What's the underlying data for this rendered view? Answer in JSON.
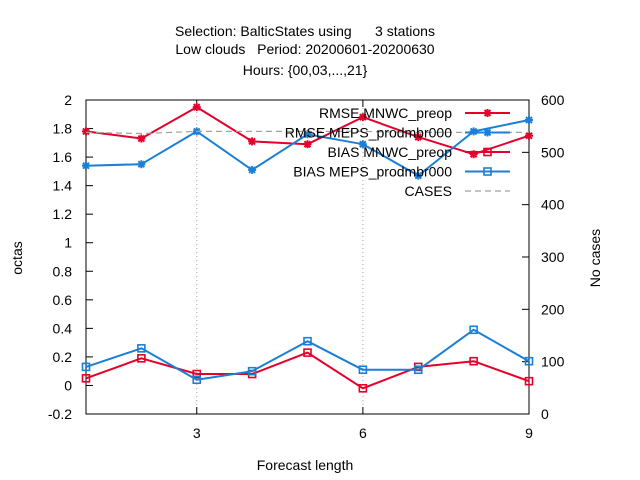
{
  "chart_data": {
    "type": "line",
    "title_lines": [
      "Selection: BalticStates using      3 stations",
      "Low clouds   Period: 20200601-20200630",
      "Hours: {00,03,...,21}"
    ],
    "xlabel": "Forecast length",
    "ylabel": "octas",
    "y2label": "No cases",
    "xlim": [
      1,
      9
    ],
    "ylim": [
      -0.2,
      2
    ],
    "y2lim": [
      0,
      600
    ],
    "x_ticks": [
      3,
      6,
      9
    ],
    "y_ticks": [
      -0.2,
      0,
      0.2,
      0.4,
      0.6,
      0.8,
      1,
      1.2,
      1.4,
      1.6,
      1.8,
      2
    ],
    "y2_ticks": [
      0,
      100,
      200,
      300,
      400,
      500,
      600
    ],
    "legend_position": "top-right",
    "x": [
      1,
      2,
      3,
      4,
      5,
      6,
      7,
      8,
      9
    ],
    "series": [
      {
        "name": "RMSE MNWC_preop",
        "axis": "y",
        "color": "#e4002b",
        "marker": "star",
        "dash": "",
        "values": [
          1.78,
          1.73,
          1.95,
          1.71,
          1.69,
          1.88,
          1.74,
          1.62,
          1.75
        ]
      },
      {
        "name": "RMSE MEPS_prodmbr000",
        "axis": "y",
        "color": "#1c7fd6",
        "marker": "star",
        "dash": "",
        "values": [
          1.54,
          1.55,
          1.78,
          1.51,
          1.76,
          1.69,
          1.47,
          1.78,
          1.86
        ]
      },
      {
        "name": "BIAS MNWC_preop",
        "axis": "y",
        "color": "#e4002b",
        "marker": "square",
        "dash": "",
        "values": [
          0.05,
          0.19,
          0.08,
          0.08,
          0.23,
          -0.02,
          0.13,
          0.17,
          0.03
        ]
      },
      {
        "name": "BIAS MEPS_prodmbr000",
        "axis": "y",
        "color": "#1c7fd6",
        "marker": "square",
        "dash": "",
        "values": [
          0.13,
          0.26,
          0.04,
          0.1,
          0.31,
          0.11,
          0.11,
          0.39,
          0.17
        ]
      },
      {
        "name": "CASES",
        "axis": "y2",
        "color": "#a0a0a0",
        "marker": "none",
        "dash": "6,4",
        "values": [
          538,
          536,
          540,
          540,
          540,
          540,
          538,
          538,
          538
        ]
      }
    ]
  }
}
